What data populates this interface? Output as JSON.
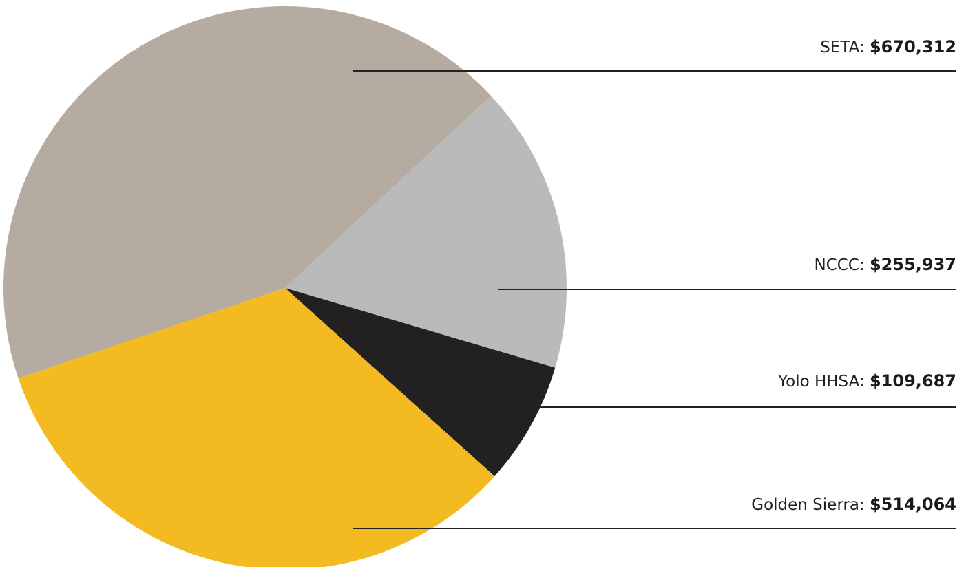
{
  "chart_data": {
    "type": "pie",
    "slices": [
      {
        "name": "SETA",
        "display_name": "SETA",
        "value": 670312,
        "value_label": "$670,312",
        "color": "#b5aba1"
      },
      {
        "name": "NCCC",
        "display_name": "NCCC",
        "value": 255937,
        "value_label": "$255,937",
        "color": "#bababa"
      },
      {
        "name": "Yolo HHSA",
        "display_name": "Yolo HHSA",
        "value": 109687,
        "value_label": "$109,687",
        "color": "#222021"
      },
      {
        "name": "Golden Sierra",
        "display_name": "Golden Sierra",
        "value": 514064,
        "value_label": "$514,064",
        "color": "#f3ba22"
      }
    ]
  }
}
